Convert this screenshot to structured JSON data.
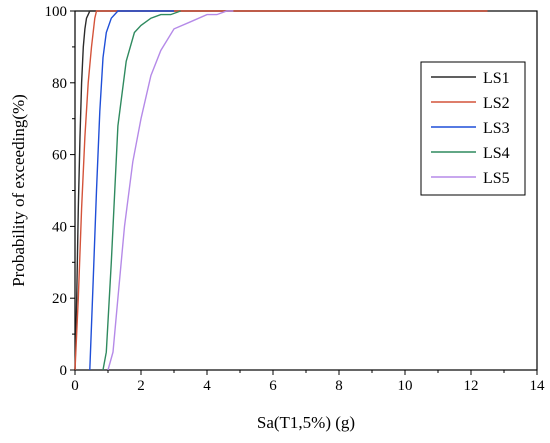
{
  "chart_data": {
    "type": "line",
    "title": "",
    "xlabel": "Sa(T1,5%) (g)",
    "ylabel": "Probability of exceeding(%)",
    "xlim": [
      0,
      14
    ],
    "ylim": [
      0,
      100
    ],
    "xticks": [
      "0",
      "2",
      "4",
      "6",
      "8",
      "10",
      "12",
      "14"
    ],
    "yticks": [
      "0",
      "20",
      "40",
      "60",
      "80",
      "100"
    ],
    "grid": false,
    "legend_position": "right",
    "series": [
      {
        "name": "LS1",
        "color": "#2b2b2b",
        "x": [
          0,
          0.05,
          0.1,
          0.15,
          0.2,
          0.25,
          0.3,
          0.35,
          0.4,
          0.45,
          0.5,
          12.5
        ],
        "y": [
          0,
          20,
          45,
          65,
          80,
          90,
          95,
          98,
          99,
          100,
          100,
          100
        ]
      },
      {
        "name": "LS2",
        "color": "#d4533a",
        "x": [
          0,
          0.1,
          0.2,
          0.3,
          0.4,
          0.5,
          0.6,
          0.65,
          1.0,
          12.5
        ],
        "y": [
          0,
          20,
          45,
          65,
          80,
          90,
          98,
          100,
          100,
          100
        ]
      },
      {
        "name": "LS3",
        "color": "#1f4fd8",
        "x": [
          0.45,
          0.55,
          0.65,
          0.75,
          0.85,
          0.95,
          1.1,
          1.3,
          1.5,
          3.0
        ],
        "y": [
          0,
          25,
          50,
          72,
          87,
          94,
          98,
          100,
          100,
          100
        ]
      },
      {
        "name": "LS4",
        "color": "#2f8a5f",
        "x": [
          0.85,
          0.95,
          1.1,
          1.3,
          1.55,
          1.8,
          2.0,
          2.3,
          2.6,
          2.9,
          3.2
        ],
        "y": [
          0,
          5,
          30,
          68,
          86,
          94,
          96,
          98,
          99,
          99,
          100
        ]
      },
      {
        "name": "LS5",
        "color": "#b58ae8",
        "x": [
          1.0,
          1.15,
          1.3,
          1.5,
          1.75,
          2.0,
          2.3,
          2.6,
          3.0,
          3.5,
          4.0,
          4.3,
          4.6,
          4.8
        ],
        "y": [
          0,
          5,
          20,
          40,
          58,
          70,
          82,
          89,
          95,
          97,
          99,
          99,
          100,
          100
        ]
      }
    ]
  }
}
